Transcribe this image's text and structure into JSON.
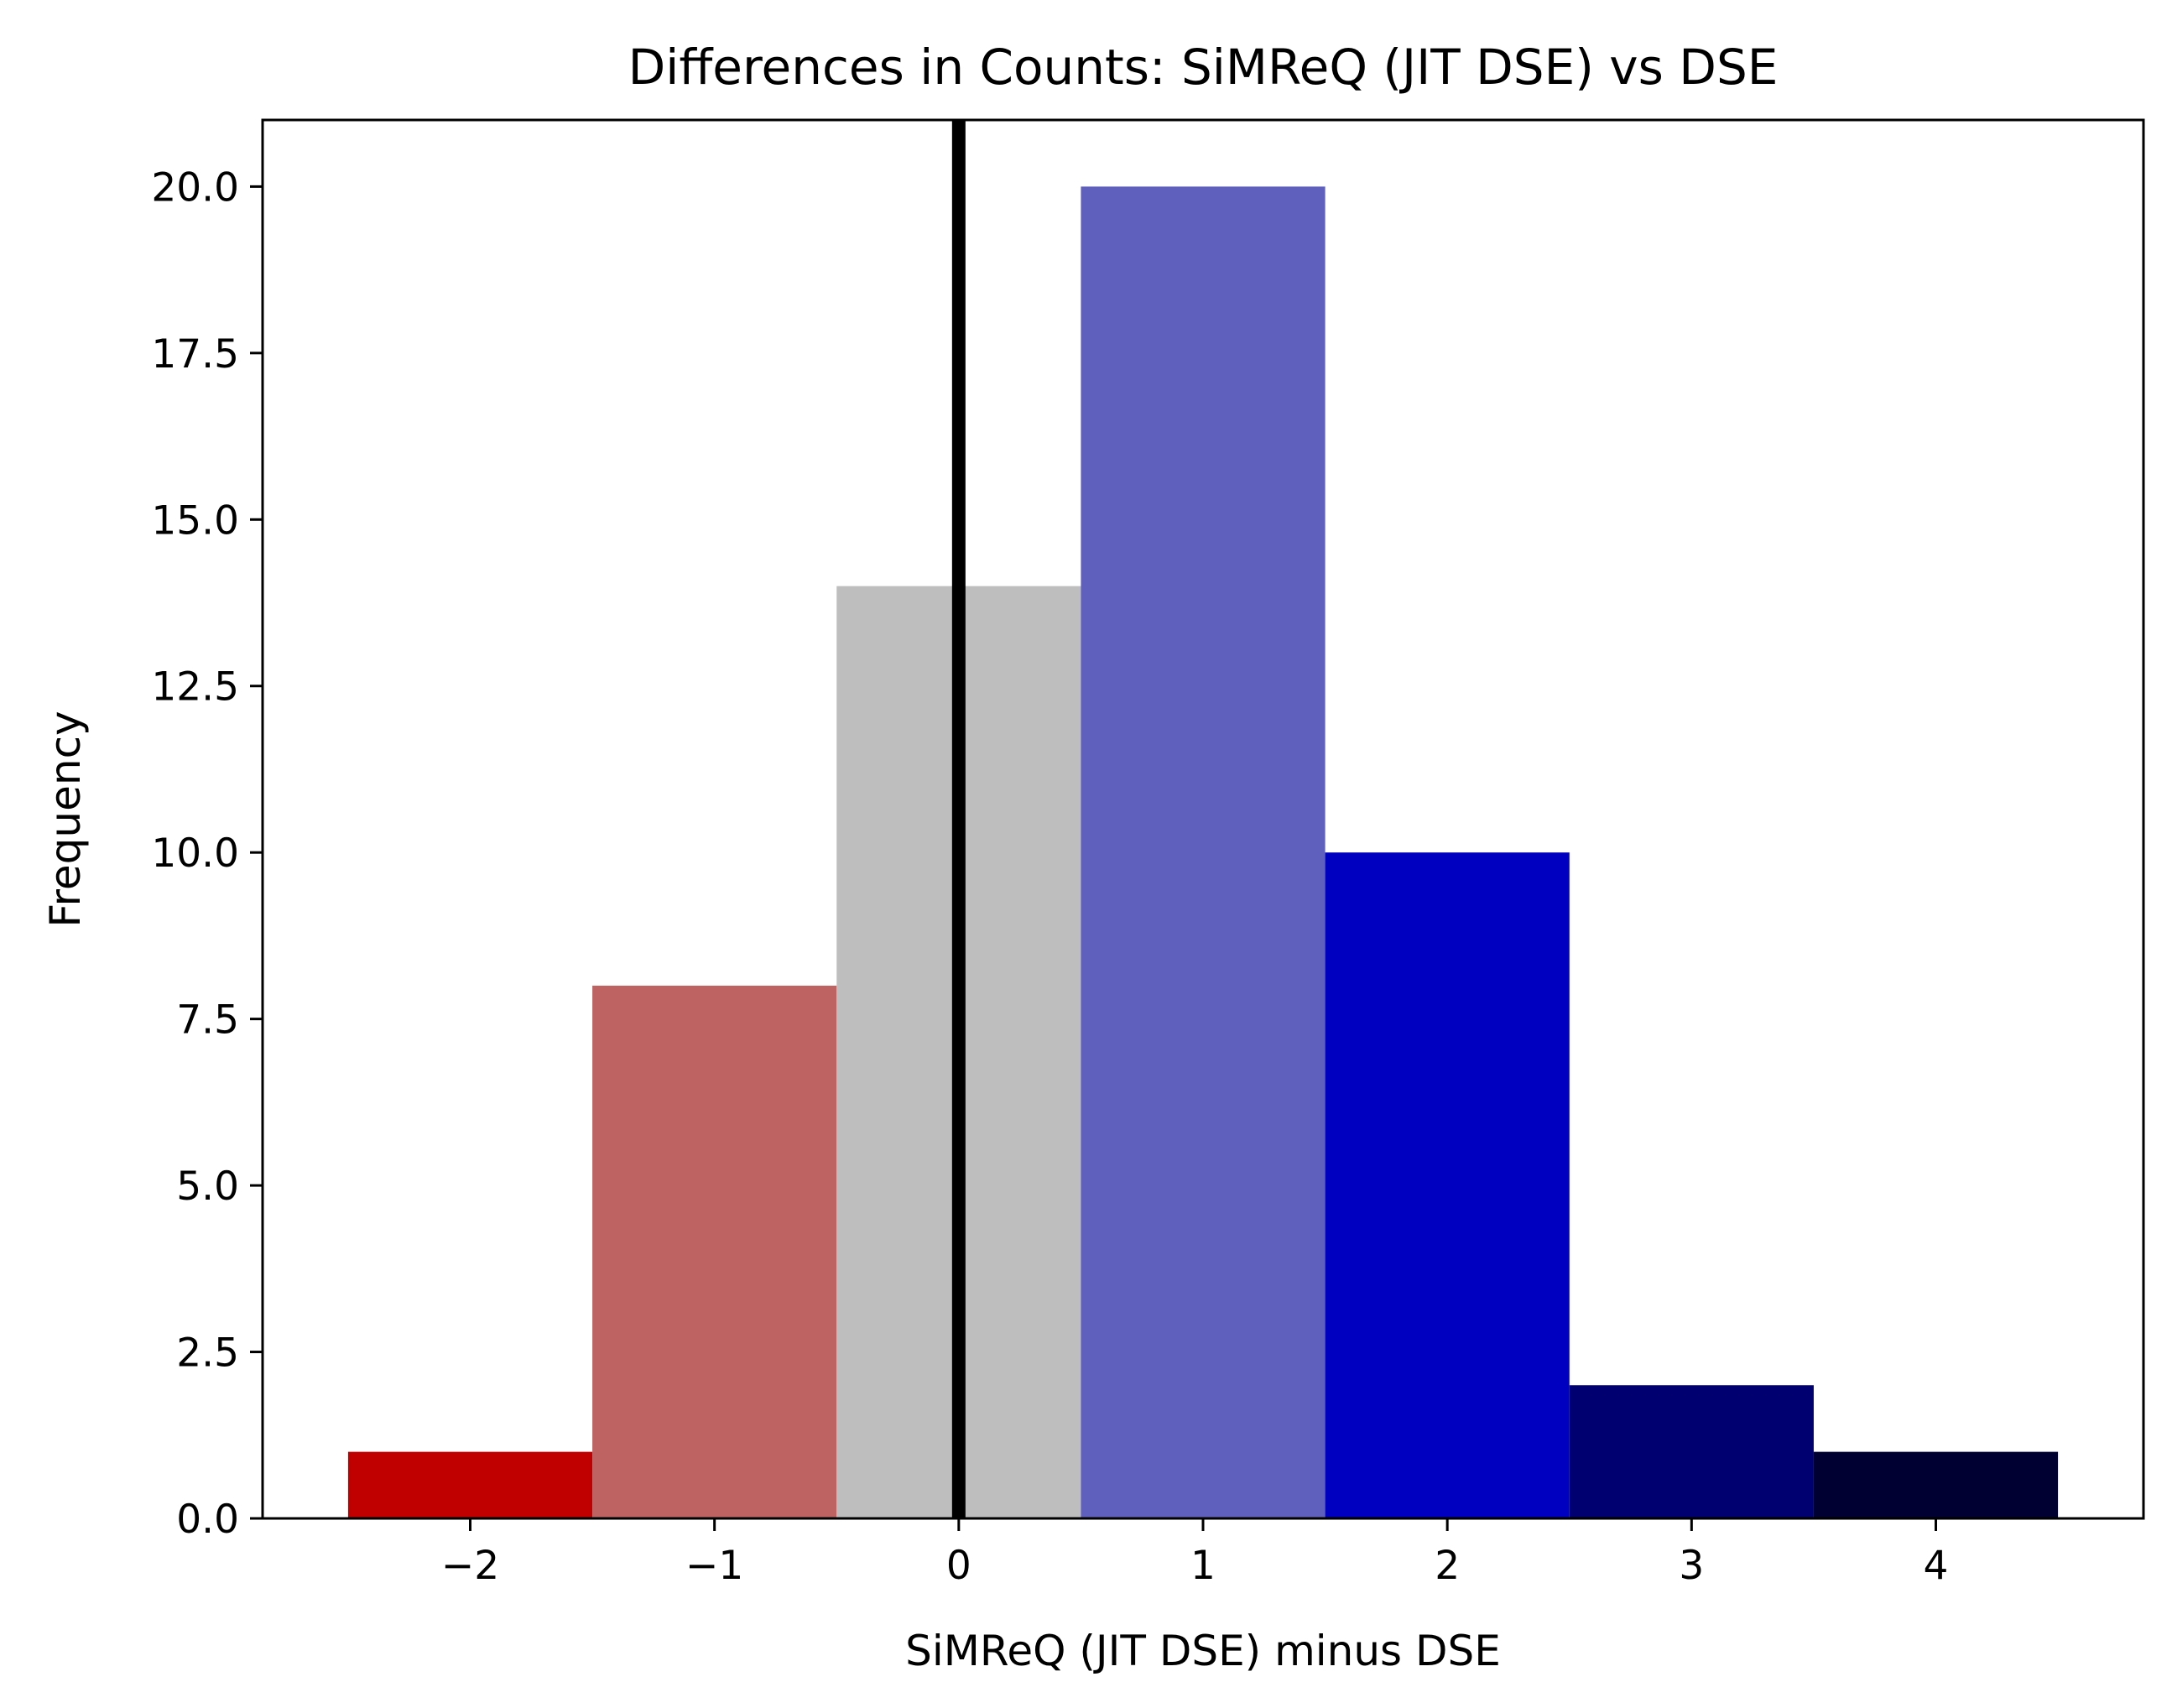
{
  "chart_data": {
    "type": "bar",
    "title": "Differences in Counts: SiMReQ (JIT DSE) vs DSE",
    "xlabel": "SiMReQ (JIT DSE) minus DSE",
    "ylabel": "Frequency",
    "bins": [
      {
        "center": -2,
        "value": 1,
        "color": "#c00000"
      },
      {
        "center": -1,
        "value": 8,
        "color": "#bf6262"
      },
      {
        "center": 0,
        "value": 14,
        "color": "#bebebe"
      },
      {
        "center": 1,
        "value": 20,
        "color": "#5f5fbd"
      },
      {
        "center": 2,
        "value": 10,
        "color": "#0000c0"
      },
      {
        "center": 3,
        "value": 2,
        "color": "#000070"
      },
      {
        "center": 4,
        "value": 1,
        "color": "#000033"
      }
    ],
    "bin_width": 1,
    "xlim": [
      -2.85,
      4.85
    ],
    "ylim": [
      0,
      21
    ],
    "xticks": [
      {
        "value": -2,
        "label": "−2"
      },
      {
        "value": -1,
        "label": "−1"
      },
      {
        "value": 0,
        "label": "0"
      },
      {
        "value": 1,
        "label": "1"
      },
      {
        "value": 2,
        "label": "2"
      },
      {
        "value": 3,
        "label": "3"
      },
      {
        "value": 4,
        "label": "4"
      }
    ],
    "yticks": [
      {
        "value": 0,
        "label": "0.0"
      },
      {
        "value": 2.5,
        "label": "2.5"
      },
      {
        "value": 5,
        "label": "5.0"
      },
      {
        "value": 7.5,
        "label": "7.5"
      },
      {
        "value": 10,
        "label": "10.0"
      },
      {
        "value": 12.5,
        "label": "12.5"
      },
      {
        "value": 15,
        "label": "15.0"
      },
      {
        "value": 17.5,
        "label": "17.5"
      },
      {
        "value": 20,
        "label": "20.0"
      }
    ],
    "reference_line": {
      "x": 0,
      "color": "#000000"
    },
    "grid": false
  }
}
